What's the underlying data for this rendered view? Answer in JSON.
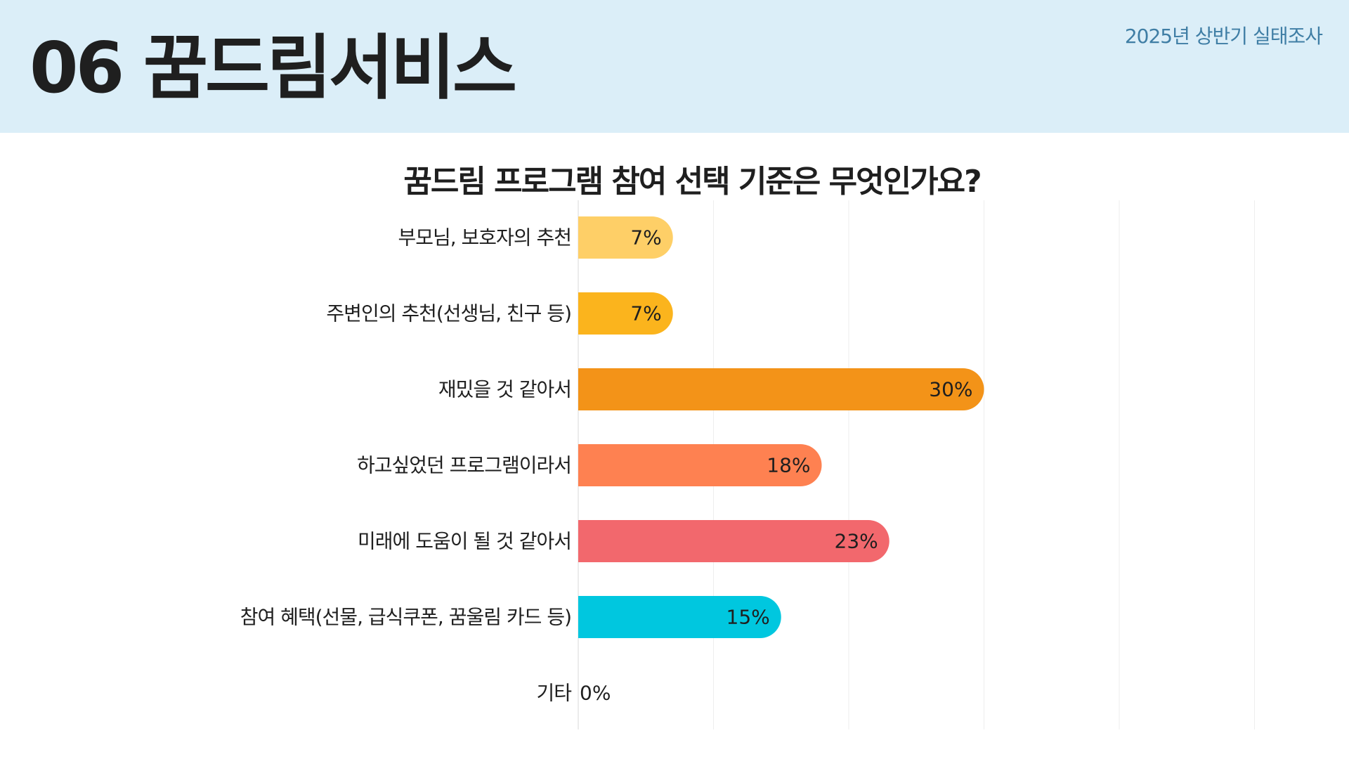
{
  "header": {
    "title": "06 꿈드림서비스",
    "survey_label": "2025년 상반기 실태조사"
  },
  "chart_data": {
    "type": "bar",
    "orientation": "horizontal",
    "title": "꿈드림 프로그램 참여 선택 기준은 무엇인가요?",
    "xlabel": "",
    "ylabel": "",
    "xlim": [
      0,
      50
    ],
    "grid": true,
    "categories": [
      "부모님, 보호자의 추천",
      "주변인의 추천(선생님, 친구 등)",
      "재밌을 것 같아서",
      "하고싶었던 프로그램이라서",
      "미래에 도움이 될 것 같아서",
      "참여 혜택(선물, 급식쿠폰, 꿈울림 카드 등)",
      "기타"
    ],
    "values": [
      7,
      7,
      30,
      18,
      23,
      15,
      0
    ],
    "value_labels": [
      "7%",
      "7%",
      "30%",
      "18%",
      "23%",
      "15%",
      "0%"
    ],
    "colors": [
      "#fecf67",
      "#fbb41d",
      "#f39318",
      "#fe8151",
      "#f2686d",
      "#00c7df",
      "#cccccc"
    ]
  }
}
